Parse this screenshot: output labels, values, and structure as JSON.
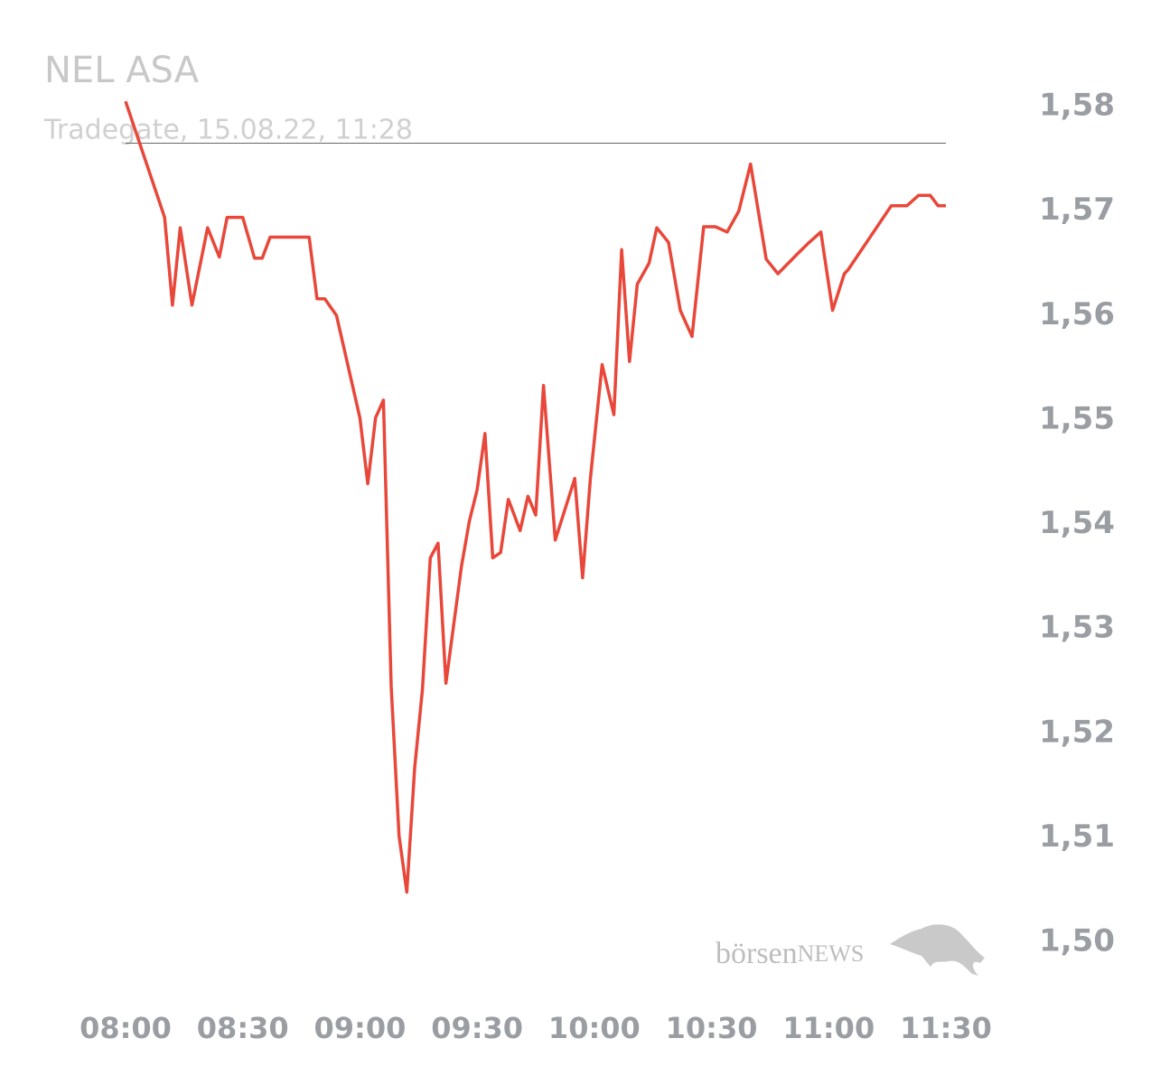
{
  "chart_data": {
    "type": "line",
    "title": "NEL ASA",
    "subtitle": "Tradegate, 15.08.22, 11:28",
    "watermark": [
      "börsen",
      "NEWS"
    ],
    "x": [
      "08:00",
      "08:10",
      "08:12",
      "08:14",
      "08:17",
      "08:21",
      "08:24",
      "08:26",
      "08:30",
      "08:33",
      "08:35",
      "08:37",
      "08:47",
      "08:49",
      "08:51",
      "08:54",
      "09:00",
      "09:02",
      "09:04",
      "09:06",
      "09:08",
      "09:10",
      "09:12",
      "09:14",
      "09:16",
      "09:18",
      "09:20",
      "09:22",
      "09:26",
      "09:28",
      "09:30",
      "09:32",
      "09:34",
      "09:36",
      "09:38",
      "09:41",
      "09:43",
      "09:45",
      "09:47",
      "09:50",
      "09:55",
      "09:57",
      "09:59",
      "10:02",
      "10:05",
      "10:07",
      "10:09",
      "10:11",
      "10:14",
      "10:16",
      "10:19",
      "10:22",
      "10:25",
      "10:28",
      "10:31",
      "10:34",
      "10:37",
      "10:40",
      "10:44",
      "10:47",
      "10:52",
      "10:55",
      "10:58",
      "11:01",
      "11:04",
      "11:05",
      "11:16",
      "11:20",
      "11:23",
      "11:26",
      "11:28",
      "11:30"
    ],
    "series": [
      {
        "color": "#e8473a",
        "values": [
          1.5805,
          1.5694,
          1.561,
          1.5684,
          1.561,
          1.5684,
          1.5656,
          1.5694,
          1.5694,
          1.5655,
          1.5655,
          1.5675,
          1.5675,
          1.5616,
          1.5616,
          1.56,
          1.5502,
          1.5439,
          1.5502,
          1.5519,
          1.5245,
          1.5102,
          1.5048,
          1.5167,
          1.5242,
          1.5368,
          1.5382,
          1.5248,
          1.536,
          1.5403,
          1.5433,
          1.5487,
          1.5368,
          1.5373,
          1.5424,
          1.5394,
          1.5427,
          1.5409,
          1.5533,
          1.5385,
          1.5444,
          1.5349,
          1.5444,
          1.5553,
          1.5505,
          1.5663,
          1.5556,
          1.563,
          1.565,
          1.5684,
          1.567,
          1.5605,
          1.558,
          1.5685,
          1.5685,
          1.568,
          1.57,
          1.5745,
          1.5654,
          1.564,
          1.5659,
          1.567,
          1.568,
          1.5605,
          1.564,
          1.5644,
          1.5705,
          1.5705,
          1.5715,
          1.5715,
          1.5705,
          1.5705
        ]
      }
    ],
    "reference_line": 1.5765,
    "xlim": [
      "08:00",
      "11:30"
    ],
    "xticks": [
      "08:00",
      "08:30",
      "09:00",
      "09:30",
      "10:00",
      "10:30",
      "11:00",
      "11:30"
    ],
    "ylim": [
      1.5,
      1.58
    ],
    "yticks": [
      {
        "value": 1.5,
        "label": "1,50"
      },
      {
        "value": 1.51,
        "label": "1,51"
      },
      {
        "value": 1.52,
        "label": "1,52"
      },
      {
        "value": 1.53,
        "label": "1,53"
      },
      {
        "value": 1.54,
        "label": "1,54"
      },
      {
        "value": 1.55,
        "label": "1,55"
      },
      {
        "value": 1.56,
        "label": "1,56"
      },
      {
        "value": 1.57,
        "label": "1,57"
      },
      {
        "value": 1.58,
        "label": "1,58"
      }
    ]
  }
}
